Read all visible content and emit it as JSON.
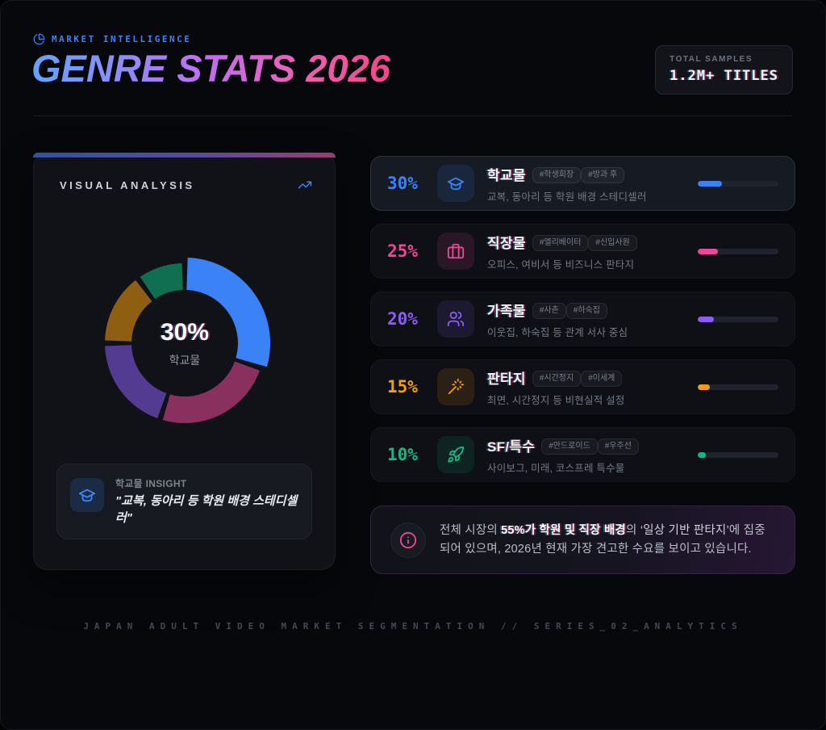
{
  "header": {
    "eyebrow": "MARKET INTELLIGENCE",
    "title": "GENRE STATS 2026",
    "badge": {
      "label": "TOTAL SAMPLES",
      "value": "1.2M+ TITLES"
    }
  },
  "visual_card": {
    "title": "VISUAL ANALYSIS",
    "center_value": "30%",
    "center_label": "학교물",
    "insight": {
      "label": "학교물 INSIGHT",
      "quote": "\"교복, 동아리 등 학원 배경 스테디셀러\""
    }
  },
  "genres": [
    {
      "percent": "30%",
      "value": 30,
      "name": "학교물",
      "tags": [
        "#학생회장",
        "#방과 후"
      ],
      "desc": "교복, 동아리 등 학원 배경 스테디셀러",
      "color": "#3b82f6",
      "icon": "graduation-cap-icon",
      "active": true
    },
    {
      "percent": "25%",
      "value": 25,
      "name": "직장물",
      "tags": [
        "#엘리베이터",
        "#신입사원"
      ],
      "desc": "오피스, 여비서 등 비즈니스 판타지",
      "color": "#ec4899",
      "icon": "briefcase-icon",
      "active": false
    },
    {
      "percent": "20%",
      "value": 20,
      "name": "가족물",
      "tags": [
        "#사촌",
        "#하숙집"
      ],
      "desc": "이웃집, 하숙집 등 관계 서사 중심",
      "color": "#8b5cf6",
      "icon": "users-icon",
      "active": false
    },
    {
      "percent": "15%",
      "value": 15,
      "name": "판타지",
      "tags": [
        "#시간정지",
        "#이세계"
      ],
      "desc": "최면, 시간정지 등 비현실적 설정",
      "color": "#f59e0b",
      "icon": "wand-icon",
      "active": false
    },
    {
      "percent": "10%",
      "value": 10,
      "name": "SF/특수",
      "tags": [
        "#안드로이드",
        "#우주선"
      ],
      "desc": "사이보그, 미래, 코스프레 특수물",
      "color": "#10b981",
      "icon": "rocket-icon",
      "active": false
    }
  ],
  "chart_data": {
    "type": "pie",
    "subtype": "donut",
    "title": "VISUAL ANALYSIS",
    "labels": [
      "학교물",
      "직장물",
      "가족물",
      "판타지",
      "SF/특수"
    ],
    "values": [
      30,
      25,
      20,
      15,
      10
    ],
    "colors": [
      "#3b82f6",
      "#ec4899",
      "#8b5cf6",
      "#f59e0b",
      "#10b981"
    ],
    "highlighted": "학교물",
    "center": {
      "value": "30%",
      "label": "학교물"
    },
    "start_angle_deg": 0,
    "direction": "clockwise",
    "dimmed_opacity": 0.55
  },
  "summary": {
    "prefix": "전체 시장의 ",
    "bold": "55%가 학원 및 직장 배경",
    "middle": "의 ",
    "quote": "‘일상 기반 판타지’",
    "suffix": "에 집중되어 있으며, 2026년 현재 가장 견고한 수요를 보이고 있습니다."
  },
  "footer": "JAPAN ADULT VIDEO MARKET SEGMENTATION // SERIES_02_ANALYTICS",
  "theme": {
    "accent_blue": "#3b82f6",
    "accent_pink": "#ec4899",
    "background": "#07080c",
    "card": "#101218"
  }
}
